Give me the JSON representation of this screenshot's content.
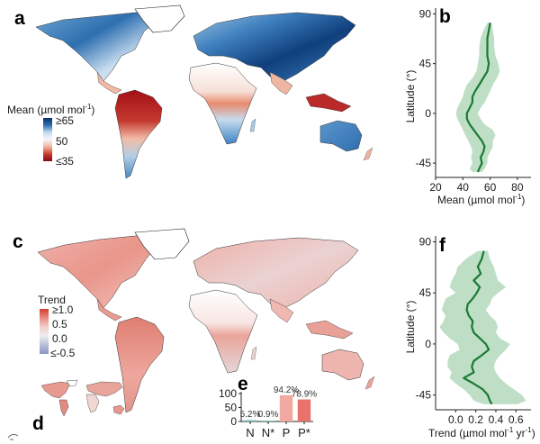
{
  "panels": {
    "a": {
      "letter": "a",
      "legend": {
        "title": "Mean (µmol mol",
        "title_sup": "-1",
        "title_end": ")",
        "ticks": [
          "≥65",
          "50",
          "≤35"
        ],
        "colors": {
          "high": "#08306b",
          "mid": "#f7f7f7",
          "low": "#a50f15"
        }
      }
    },
    "b": {
      "letter": "b"
    },
    "c": {
      "letter": "c",
      "legend": {
        "title": "Trend",
        "ticks": [
          "≥1.0",
          "0.5",
          "0.0",
          "≤-0.5"
        ],
        "colors": {
          "high": "#d6392f",
          "mid": "#f0f0f0",
          "low": "#8c96c6"
        }
      }
    },
    "d": {
      "letter": "d"
    },
    "e": {
      "letter": "e"
    },
    "f": {
      "letter": "f"
    }
  },
  "chart_data": [
    {
      "id": "b",
      "type": "line",
      "title": "",
      "xlabel": "Mean (µmol mol-1)",
      "ylabel": "Latitude (°)",
      "xlim": [
        20,
        90
      ],
      "ylim": [
        -58,
        92
      ],
      "xticks": [
        "20",
        "40",
        "60",
        "80"
      ],
      "xtick_values": [
        20,
        40,
        60,
        80
      ],
      "yticks": [
        "90",
        "45",
        "0",
        "-45"
      ],
      "ytick_values": [
        90,
        45,
        0,
        -45
      ],
      "line_color": "#1a7a32",
      "band_color": "#a8d3b1",
      "series": [
        {
          "name": "mean",
          "lat": [
            82,
            75,
            68,
            60,
            52,
            45,
            38,
            32,
            26,
            20,
            15,
            10,
            5,
            0,
            -5,
            -10,
            -15,
            -20,
            -25,
            -30,
            -35,
            -40,
            -45,
            -50,
            -53
          ],
          "value": [
            60,
            59,
            58,
            58,
            58,
            59,
            58,
            55,
            52,
            49,
            47,
            47,
            45,
            43,
            43,
            45,
            48,
            51,
            54,
            56,
            55,
            53,
            54,
            52,
            51
          ],
          "lower": [
            58,
            55,
            53,
            52,
            52,
            51,
            50,
            47,
            43,
            41,
            40,
            38,
            36,
            35,
            36,
            38,
            40,
            42,
            44,
            46,
            47,
            46,
            47,
            45,
            47
          ],
          "upper": [
            61,
            62,
            63,
            63,
            64,
            66,
            67,
            65,
            62,
            60,
            58,
            56,
            53,
            51,
            53,
            56,
            62,
            64,
            62,
            62,
            60,
            58,
            58,
            56,
            54
          ]
        }
      ]
    },
    {
      "id": "f",
      "type": "line",
      "title": "",
      "xlabel": "Trend (µmol mol-1 yr-1)",
      "ylabel": "Latitude (°)",
      "xlim": [
        -0.2,
        0.75
      ],
      "ylim": [
        -58,
        92
      ],
      "xticks": [
        "0.0",
        "0.2",
        "0.4",
        "0.6"
      ],
      "xtick_values": [
        0.0,
        0.2,
        0.4,
        0.6
      ],
      "yticks": [
        "90",
        "45",
        "0",
        "-45"
      ],
      "ytick_values": [
        90,
        45,
        0,
        -45
      ],
      "line_color": "#1a7a32",
      "band_color": "#a8d3b1",
      "series": [
        {
          "name": "trend",
          "lat": [
            82,
            75,
            68,
            62,
            56,
            50,
            45,
            40,
            35,
            30,
            25,
            20,
            15,
            10,
            5,
            0,
            -5,
            -10,
            -15,
            -20,
            -25,
            -30,
            -35,
            -40,
            -45,
            -50,
            -53
          ],
          "value": [
            0.28,
            0.26,
            0.22,
            0.25,
            0.18,
            0.24,
            0.21,
            0.17,
            0.12,
            0.11,
            0.13,
            0.17,
            0.16,
            0.18,
            0.24,
            0.3,
            0.33,
            0.26,
            0.18,
            0.16,
            0.18,
            0.08,
            0.18,
            0.27,
            0.32,
            0.34,
            0.36
          ],
          "lower": [
            0.22,
            0.1,
            0.02,
            0.0,
            -0.04,
            -0.06,
            0.0,
            -0.1,
            -0.12,
            -0.14,
            -0.1,
            -0.12,
            -0.16,
            -0.12,
            -0.06,
            0.02,
            0.04,
            -0.06,
            -0.08,
            -0.08,
            -0.04,
            -0.06,
            0.0,
            0.08,
            0.14,
            0.18,
            0.28
          ],
          "upper": [
            0.32,
            0.34,
            0.38,
            0.4,
            0.42,
            0.5,
            0.42,
            0.36,
            0.34,
            0.3,
            0.34,
            0.4,
            0.42,
            0.4,
            0.44,
            0.54,
            0.5,
            0.44,
            0.4,
            0.38,
            0.4,
            0.44,
            0.5,
            0.58,
            0.66,
            0.7,
            0.62
          ]
        }
      ]
    },
    {
      "id": "e",
      "type": "bar",
      "title": "",
      "categories": [
        "N",
        "N*",
        "P",
        "P*"
      ],
      "values": [
        5.2,
        0.9,
        94.2,
        78.9
      ],
      "data_labels": [
        "5.2%",
        "0.9%",
        "94.2%",
        "78.9%"
      ],
      "bar_colors": [
        "#7ec8c0",
        "#7ec8c0",
        "#f0a8a0",
        "#e8736a"
      ],
      "ylim": [
        0,
        100
      ],
      "yticks": [
        "100",
        "50",
        "0"
      ],
      "ytick_values": [
        100,
        50,
        0
      ]
    }
  ],
  "axis_text": {
    "b_xlabel_pre": "Mean (µmol mol",
    "b_xlabel_sup": "-1",
    "b_xlabel_post": ")",
    "ylabel": "Latitude (°)",
    "f_xlabel_pre": "Trend (µmol mol",
    "f_xlabel_sup1": "-1",
    "f_xlabel_mid": " yr",
    "f_xlabel_sup2": "-1",
    "f_xlabel_post": ")"
  }
}
